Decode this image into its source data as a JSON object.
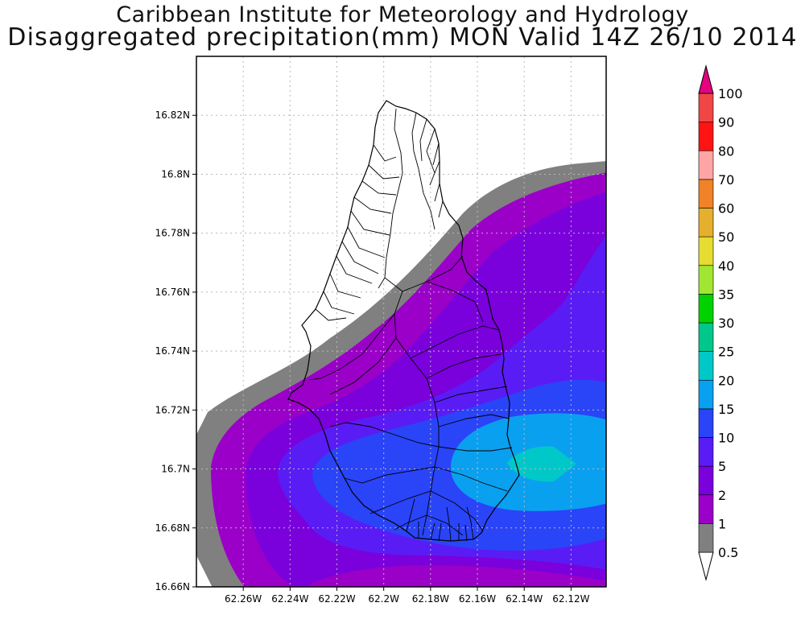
{
  "title": "Caribbean Institute for Meteorology and Hydrology",
  "subtitle": "Disaggregated precipitation(mm) MON Valid 14Z 26/10 2014",
  "map": {
    "lat_range": [
      16.66,
      16.84
    ],
    "lon_range": [
      -62.28,
      -62.105
    ],
    "lat_ticks": [
      "16.66N",
      "16.68N",
      "16.7N",
      "16.72N",
      "16.74N",
      "16.76N",
      "16.78N",
      "16.8N",
      "16.82N"
    ],
    "lon_ticks": [
      "62.26W",
      "62.24W",
      "62.22W",
      "62.2W",
      "62.18W",
      "62.16W",
      "62.14W",
      "62.12W"
    ],
    "grid": true
  },
  "legend": {
    "levels": [
      "0.5",
      "1",
      "2",
      "5",
      "10",
      "15",
      "20",
      "25",
      "30",
      "35",
      "40",
      "50",
      "60",
      "70",
      "80",
      "90",
      "100"
    ],
    "colors": [
      "#ffffff",
      "#808080",
      "#9a00c8",
      "#7a00dc",
      "#5a1cf4",
      "#2a44f8",
      "#0aa0f0",
      "#00c8c8",
      "#00c88c",
      "#00d200",
      "#a0e632",
      "#e6dc32",
      "#e6af2d",
      "#f08228",
      "#ffa5a5",
      "#ff1414",
      "#f04646",
      "#e60082"
    ]
  },
  "colors": {
    "gray": "#808080",
    "purple": "#9a00c8",
    "violet": "#7a00dc",
    "blue_violet": "#5a1cf4",
    "blue": "#2a44f8",
    "light_blue": "#0aa0f0",
    "teal": "#00c8c8"
  }
}
